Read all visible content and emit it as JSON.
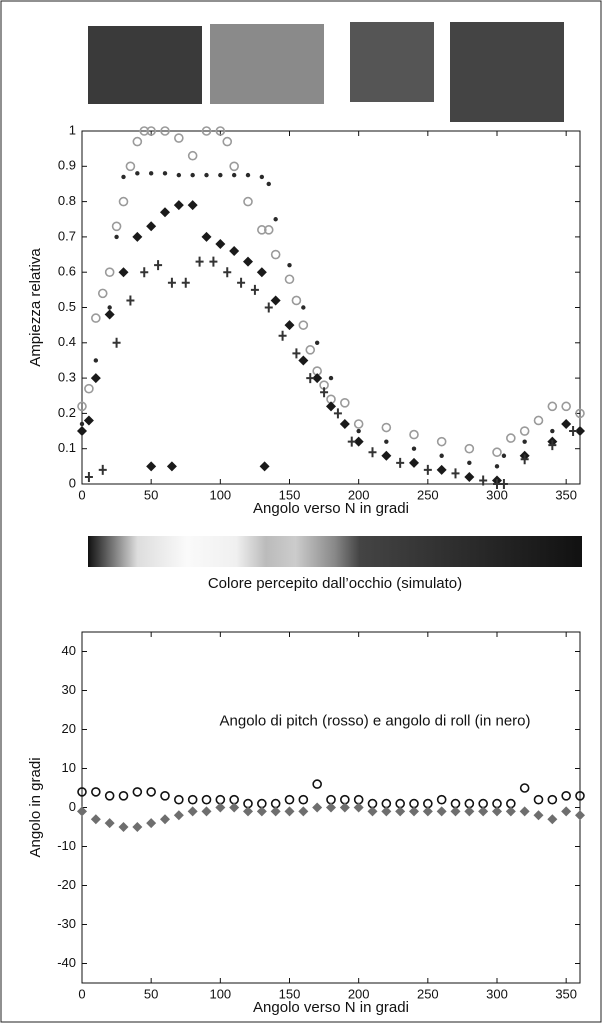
{
  "figure": {
    "colorbar_caption": "Colore percepito dall’occhio (simulato)"
  },
  "chart_data": [
    {
      "type": "scatter",
      "xlabel": "Angolo verso N in gradi",
      "ylabel": "Ampiezza relativa",
      "xlim": [
        0,
        360
      ],
      "ylim": [
        0,
        1
      ],
      "xticks": [
        0,
        50,
        100,
        150,
        200,
        250,
        300,
        350
      ],
      "yticks": [
        0,
        0.1,
        0.2,
        0.3,
        0.4,
        0.5,
        0.6,
        0.7,
        0.8,
        0.9,
        1
      ],
      "grid": false,
      "series": [
        {
          "color": "#9a9a9a",
          "marker": "circle",
          "x": [
            0,
            5,
            10,
            15,
            20,
            25,
            30,
            35,
            40,
            45,
            50,
            60,
            70,
            80,
            90,
            100,
            105,
            110,
            120,
            130,
            135,
            140,
            150,
            155,
            160,
            165,
            170,
            175,
            180,
            190,
            200,
            220,
            240,
            260,
            280,
            300,
            310,
            320,
            330,
            340,
            350,
            360
          ],
          "values": [
            0.22,
            0.27,
            0.47,
            0.54,
            0.6,
            0.73,
            0.8,
            0.9,
            0.97,
            1,
            1,
            1,
            0.98,
            0.93,
            1,
            1,
            0.97,
            0.9,
            0.8,
            0.72,
            0.72,
            0.65,
            0.58,
            0.52,
            0.45,
            0.38,
            0.32,
            0.28,
            0.24,
            0.23,
            0.17,
            0.16,
            0.14,
            0.12,
            0.1,
            0.09,
            0.13,
            0.15,
            0.18,
            0.22,
            0.22,
            0.2
          ]
        },
        {
          "color": "#2a2a2a",
          "marker": "dot",
          "x": [
            0,
            10,
            20,
            25,
            30,
            40,
            50,
            60,
            70,
            80,
            90,
            100,
            110,
            120,
            130,
            135,
            140,
            150,
            160,
            170,
            180,
            200,
            220,
            240,
            260,
            280,
            300,
            305,
            320,
            340,
            360
          ],
          "values": [
            0.17,
            0.35,
            0.5,
            0.7,
            0.87,
            0.88,
            0.88,
            0.88,
            0.875,
            0.875,
            0.875,
            0.875,
            0.875,
            0.875,
            0.87,
            0.85,
            0.75,
            0.62,
            0.5,
            0.4,
            0.3,
            0.15,
            0.12,
            0.1,
            0.08,
            0.06,
            0.05,
            0.08,
            0.12,
            0.15,
            0.15
          ]
        },
        {
          "color": "#1a1a1a",
          "marker": "diamond",
          "x": [
            0,
            5,
            10,
            20,
            30,
            40,
            50,
            60,
            70,
            80,
            90,
            100,
            110,
            120,
            130,
            140,
            150,
            160,
            170,
            180,
            190,
            200,
            220,
            240,
            260,
            280,
            300,
            320,
            340,
            350,
            360,
            50,
            65,
            132
          ],
          "values": [
            0.15,
            0.18,
            0.3,
            0.48,
            0.6,
            0.7,
            0.73,
            0.77,
            0.79,
            0.79,
            0.7,
            0.68,
            0.66,
            0.63,
            0.6,
            0.52,
            0.45,
            0.35,
            0.3,
            0.22,
            0.17,
            0.12,
            0.08,
            0.06,
            0.04,
            0.02,
            0.01,
            0.08,
            0.12,
            0.17,
            0.15,
            0.05,
            0.05,
            0.05
          ]
        },
        {
          "color": "#333333",
          "marker": "plus",
          "x": [
            5,
            15,
            25,
            35,
            45,
            55,
            65,
            75,
            85,
            95,
            105,
            115,
            125,
            135,
            145,
            155,
            165,
            175,
            185,
            195,
            210,
            230,
            250,
            270,
            290,
            300,
            305,
            320,
            340,
            355
          ],
          "values": [
            0.02,
            0.04,
            0.4,
            0.52,
            0.6,
            0.62,
            0.57,
            0.57,
            0.63,
            0.63,
            0.6,
            0.57,
            0.55,
            0.5,
            0.42,
            0.37,
            0.3,
            0.26,
            0.2,
            0.12,
            0.09,
            0.06,
            0.04,
            0.03,
            0.01,
            0,
            0,
            0.07,
            0.11,
            0.15
          ]
        }
      ]
    },
    {
      "type": "scatter",
      "xlabel": "Angolo verso N in gradi",
      "ylabel": "Angolo in gradi",
      "annotation": "Angolo di pitch (rosso) e angolo di roll (in nero)",
      "xlim": [
        0,
        360
      ],
      "ylim": [
        -45,
        45
      ],
      "xticks": [
        0,
        50,
        100,
        150,
        200,
        250,
        300,
        350
      ],
      "yticks": [
        -40,
        -30,
        -20,
        -10,
        0,
        10,
        20,
        30,
        40
      ],
      "grid": false,
      "series": [
        {
          "color": "#111111",
          "marker": "circle",
          "x": [
            0,
            10,
            20,
            30,
            40,
            50,
            60,
            70,
            80,
            90,
            100,
            110,
            120,
            130,
            140,
            150,
            160,
            170,
            180,
            190,
            200,
            210,
            220,
            230,
            240,
            250,
            260,
            270,
            280,
            290,
            300,
            310,
            320,
            330,
            340,
            350,
            360
          ],
          "values": [
            4,
            4,
            3,
            3,
            4,
            4,
            3,
            2,
            2,
            2,
            2,
            2,
            1,
            1,
            1,
            2,
            2,
            6,
            2,
            2,
            2,
            1,
            1,
            1,
            1,
            1,
            2,
            1,
            1,
            1,
            1,
            1,
            5,
            2,
            2,
            3,
            3
          ]
        },
        {
          "color": "#6e6e6e",
          "marker": "diamond",
          "x": [
            0,
            10,
            20,
            30,
            40,
            50,
            60,
            70,
            80,
            90,
            100,
            110,
            120,
            130,
            140,
            150,
            160,
            170,
            180,
            190,
            200,
            210,
            220,
            230,
            240,
            250,
            260,
            270,
            280,
            290,
            300,
            310,
            320,
            330,
            340,
            350,
            360
          ],
          "values": [
            -1,
            -3,
            -4,
            -5,
            -5,
            -4,
            -3,
            -2,
            -1,
            -1,
            0,
            0,
            -1,
            -1,
            -1,
            -1,
            -1,
            0,
            0,
            0,
            0,
            -1,
            -1,
            -1,
            -1,
            -1,
            -1,
            -1,
            -1,
            -1,
            -1,
            -1,
            -1,
            -2,
            -3,
            -1,
            -2
          ]
        }
      ]
    }
  ]
}
